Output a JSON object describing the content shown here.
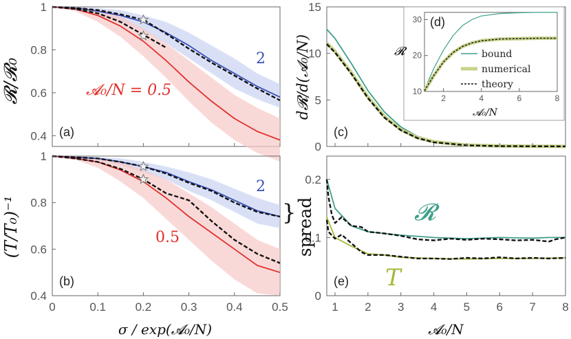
{
  "colors": {
    "blue": "#3a4fb5",
    "blue_band": "#c9d3f2",
    "red": "#e0302c",
    "red_band": "#f7c9c7",
    "teal": "#3f9f8a",
    "olive": "#a8b83a",
    "olive_thick": "#c8d28a",
    "black": "#111111",
    "axis": "#666666"
  },
  "chart_data": [
    {
      "panel": "(a)",
      "type": "line",
      "ylabel": "𝓡/𝓡₀",
      "xlabel": "",
      "xlim": [
        0,
        0.5
      ],
      "ylim": [
        0.35,
        1.0
      ],
      "xticks": [],
      "yticks": [
        "1",
        "0.8",
        "0.6",
        "0.4"
      ],
      "annotations": {
        "label_2": "2",
        "label_05": "𝓐₀/N = 0.5"
      },
      "series": [
        {
          "name": "2",
          "role": "numerical",
          "color": "blue",
          "x": [
            0,
            0.05,
            0.1,
            0.15,
            0.2,
            0.25,
            0.3,
            0.35,
            0.4,
            0.45,
            0.5
          ],
          "y": [
            1.0,
            0.995,
            0.98,
            0.96,
            0.93,
            0.88,
            0.82,
            0.75,
            0.69,
            0.63,
            0.58
          ],
          "band_low": [
            1.0,
            0.99,
            0.96,
            0.93,
            0.89,
            0.83,
            0.76,
            0.69,
            0.62,
            0.57,
            0.53
          ],
          "band_high": [
            1.0,
            1.0,
            0.995,
            0.985,
            0.96,
            0.93,
            0.88,
            0.82,
            0.76,
            0.69,
            0.64
          ]
        },
        {
          "name": "0.5",
          "role": "numerical",
          "color": "red",
          "x": [
            0,
            0.05,
            0.1,
            0.15,
            0.2,
            0.25,
            0.3,
            0.35,
            0.4,
            0.45,
            0.5
          ],
          "y": [
            1.0,
            0.99,
            0.96,
            0.91,
            0.84,
            0.75,
            0.65,
            0.56,
            0.48,
            0.42,
            0.38
          ],
          "band_low": [
            1.0,
            0.98,
            0.93,
            0.86,
            0.77,
            0.67,
            0.56,
            0.46,
            0.38,
            0.32,
            0.28
          ],
          "band_high": [
            1.0,
            1.0,
            0.985,
            0.955,
            0.9,
            0.83,
            0.75,
            0.67,
            0.59,
            0.53,
            0.48
          ]
        },
        {
          "name": "",
          "role": "theory",
          "color": "black",
          "dashed": true,
          "x": [
            0,
            0.05,
            0.1,
            0.15,
            0.2,
            0.25,
            0.3,
            0.35,
            0.4,
            0.45,
            0.5
          ],
          "y": [
            1.0,
            0.995,
            0.985,
            0.965,
            0.94,
            0.875,
            0.805,
            0.74,
            0.68,
            0.62,
            0.565
          ]
        },
        {
          "name": "",
          "role": "theory",
          "color": "black",
          "dashed": true,
          "x": [
            0,
            0.05,
            0.1,
            0.15,
            0.2,
            0.25
          ],
          "y": [
            1.0,
            0.99,
            0.97,
            0.93,
            0.87,
            0.81
          ]
        }
      ],
      "markers": [
        {
          "x": 0.2,
          "y": 0.94
        },
        {
          "x": 0.2,
          "y": 0.865
        }
      ]
    },
    {
      "panel": "(b)",
      "type": "line",
      "ylabel": "(T/T₀)⁻¹",
      "xlabel": "σ / exp(𝓐₀/N)",
      "xlim": [
        0,
        0.5
      ],
      "ylim": [
        0.4,
        1.0
      ],
      "xticks": [
        "0",
        "0.1",
        "0.2",
        "0.3",
        "0.4",
        "0.5"
      ],
      "yticks": [
        "1",
        "0.8",
        "0.6",
        "0.4"
      ],
      "annotations": {
        "label_2": "2",
        "label_05": "0.5"
      },
      "series": [
        {
          "name": "2",
          "role": "numerical",
          "color": "blue",
          "x": [
            0,
            0.05,
            0.1,
            0.15,
            0.2,
            0.25,
            0.3,
            0.35,
            0.4,
            0.45,
            0.5
          ],
          "y": [
            1.0,
            0.995,
            0.99,
            0.975,
            0.955,
            0.93,
            0.89,
            0.855,
            0.81,
            0.765,
            0.74
          ],
          "band_low": [
            1.0,
            0.99,
            0.98,
            0.96,
            0.93,
            0.9,
            0.85,
            0.81,
            0.76,
            0.71,
            0.69
          ],
          "band_high": [
            1.0,
            1.0,
            0.995,
            0.99,
            0.975,
            0.955,
            0.93,
            0.9,
            0.86,
            0.82,
            0.79
          ]
        },
        {
          "name": "0.5",
          "role": "numerical",
          "color": "red",
          "x": [
            0,
            0.05,
            0.1,
            0.15,
            0.2,
            0.25,
            0.3,
            0.35,
            0.4,
            0.45,
            0.5
          ],
          "y": [
            1.0,
            0.99,
            0.975,
            0.94,
            0.89,
            0.82,
            0.74,
            0.67,
            0.6,
            0.53,
            0.5
          ],
          "band_low": [
            1.0,
            0.985,
            0.95,
            0.89,
            0.82,
            0.73,
            0.64,
            0.55,
            0.47,
            0.41,
            0.4
          ],
          "band_high": [
            1.0,
            1.0,
            0.99,
            0.975,
            0.94,
            0.9,
            0.84,
            0.78,
            0.71,
            0.64,
            0.6
          ]
        },
        {
          "name": "",
          "role": "theory",
          "color": "black",
          "dashed": true,
          "x": [
            0,
            0.05,
            0.1,
            0.15,
            0.2,
            0.25,
            0.3,
            0.35,
            0.4,
            0.45,
            0.5
          ],
          "y": [
            1.0,
            0.995,
            0.99,
            0.975,
            0.955,
            0.925,
            0.885,
            0.85,
            0.8,
            0.76,
            0.74
          ]
        },
        {
          "name": "",
          "role": "theory",
          "color": "black",
          "dashed": true,
          "x": [
            0,
            0.05,
            0.1,
            0.15,
            0.2,
            0.25,
            0.3,
            0.35,
            0.4,
            0.45,
            0.5
          ],
          "y": [
            1.0,
            0.99,
            0.975,
            0.945,
            0.9,
            0.84,
            0.81,
            0.72,
            0.64,
            0.58,
            0.54
          ]
        }
      ],
      "markers": [
        {
          "x": 0.2,
          "y": 0.955
        },
        {
          "x": 0.2,
          "y": 0.9
        }
      ],
      "brace_label": ""
    },
    {
      "panel": "(c)",
      "type": "line",
      "ylabel": "d𝓡/d(𝓐₀/N)",
      "xlabel": "",
      "xlim": [
        0.75,
        8
      ],
      "ylim": [
        0,
        15
      ],
      "yticks": [
        "0",
        "5",
        "10",
        "15"
      ],
      "series": [
        {
          "name": "bound",
          "color": "teal",
          "x": [
            0.75,
            1,
            1.5,
            2,
            2.5,
            3,
            3.5,
            4,
            5,
            6,
            7,
            8
          ],
          "y": [
            12.6,
            11.6,
            8.9,
            6.0,
            3.7,
            2.1,
            1.1,
            0.6,
            0.2,
            0.08,
            0.04,
            0.02
          ]
        },
        {
          "name": "numerical",
          "color": "olive_thick",
          "x": [
            0.75,
            1,
            1.5,
            2,
            2.5,
            3,
            3.5,
            4,
            5,
            6,
            7,
            8
          ],
          "y": [
            11.1,
            10.2,
            7.9,
            5.3,
            3.2,
            1.8,
            0.95,
            0.5,
            0.15,
            0.05,
            0.02,
            0.01
          ]
        },
        {
          "name": "theory",
          "color": "black",
          "dashed": true,
          "x": [
            0.75,
            1,
            1.5,
            2,
            2.5,
            3,
            3.5,
            4,
            5,
            6,
            7,
            8
          ],
          "y": [
            11.0,
            10.1,
            7.8,
            5.2,
            3.1,
            1.75,
            0.9,
            0.45,
            0.12,
            0.04,
            0.02,
            0.01
          ]
        }
      ]
    },
    {
      "panel": "(d)",
      "type": "line",
      "ylabel": "𝓡",
      "xlabel": "𝓐₀/N",
      "xlim": [
        1,
        8
      ],
      "ylim": [
        10,
        32
      ],
      "xticks": [
        "2",
        "4",
        "6",
        "8"
      ],
      "yticks": [
        "30",
        "20",
        "10"
      ],
      "legend": [
        "bound",
        "numerical",
        "theory"
      ],
      "series": [
        {
          "name": "bound",
          "color": "teal",
          "x": [
            1,
            1.5,
            2,
            2.5,
            3,
            3.5,
            4,
            5,
            6,
            7,
            8
          ],
          "y": [
            10.5,
            16.5,
            21.5,
            25.5,
            28.3,
            30.0,
            31.0,
            31.7,
            31.9,
            32.0,
            32.0
          ]
        },
        {
          "name": "numerical",
          "color": "olive_thick",
          "x": [
            1,
            1.5,
            2,
            2.5,
            3,
            3.5,
            4,
            5,
            6,
            7,
            8
          ],
          "y": [
            10.2,
            14.5,
            18.2,
            20.8,
            22.5,
            23.5,
            24.1,
            24.6,
            24.7,
            24.8,
            24.8
          ]
        },
        {
          "name": "theory",
          "color": "black",
          "dashed": true,
          "x": [
            1,
            1.5,
            2,
            2.5,
            3,
            3.5,
            4,
            5,
            6,
            7,
            8
          ],
          "y": [
            10.2,
            14.5,
            18.2,
            20.8,
            22.5,
            23.5,
            24.1,
            24.6,
            24.7,
            24.8,
            24.8
          ]
        }
      ]
    },
    {
      "panel": "(e)",
      "type": "line",
      "ylabel": "spread",
      "xlabel": "𝓐₀/N",
      "xlim": [
        0.75,
        8
      ],
      "ylim": [
        0,
        0.24
      ],
      "xticks": [
        "1",
        "2",
        "3",
        "4",
        "5",
        "6",
        "7",
        "8"
      ],
      "yticks": [
        "0",
        "0.1",
        "0.2"
      ],
      "annotations": {
        "label_R": "𝓡",
        "label_T": "T"
      },
      "series": [
        {
          "name": "𝓡",
          "color": "teal",
          "x": [
            0.75,
            1,
            1.5,
            2,
            2.5,
            3,
            4,
            5,
            6,
            7,
            7.5,
            8
          ],
          "y": [
            0.2,
            0.15,
            0.12,
            0.11,
            0.107,
            0.104,
            0.1,
            0.098,
            0.1,
            0.099,
            0.1,
            0.1
          ]
        },
        {
          "name": "T",
          "color": "olive",
          "x": [
            0.75,
            1,
            1.5,
            2,
            2.5,
            3,
            4,
            5,
            6,
            7,
            8
          ],
          "y": [
            0.135,
            0.1,
            0.085,
            0.072,
            0.07,
            0.066,
            0.064,
            0.063,
            0.064,
            0.064,
            0.065
          ]
        },
        {
          "name": "",
          "role": "theory",
          "color": "black",
          "dashed": true,
          "x": [
            0.75,
            0.8,
            0.9,
            1,
            1.2,
            1.5,
            1.8,
            2,
            2.5,
            3,
            3.5,
            4,
            4.5,
            5,
            5.5,
            6,
            6.5,
            7,
            7.5,
            7.7,
            8
          ],
          "y": [
            0.2,
            0.17,
            0.14,
            0.125,
            0.135,
            0.12,
            0.118,
            0.11,
            0.107,
            0.103,
            0.097,
            0.095,
            0.098,
            0.096,
            0.098,
            0.097,
            0.095,
            0.096,
            0.093,
            0.097,
            0.1
          ]
        },
        {
          "name": "",
          "role": "theory",
          "color": "black",
          "dashed": true,
          "x": [
            0.75,
            0.8,
            1,
            1.2,
            1.5,
            1.8,
            2,
            2.5,
            3,
            3.5,
            4,
            4.5,
            5,
            5.5,
            6,
            6.5,
            7,
            7.5,
            8
          ],
          "y": [
            0.13,
            0.11,
            0.098,
            0.105,
            0.09,
            0.075,
            0.07,
            0.07,
            0.067,
            0.064,
            0.064,
            0.063,
            0.065,
            0.064,
            0.066,
            0.064,
            0.065,
            0.064,
            0.065
          ]
        }
      ]
    }
  ]
}
